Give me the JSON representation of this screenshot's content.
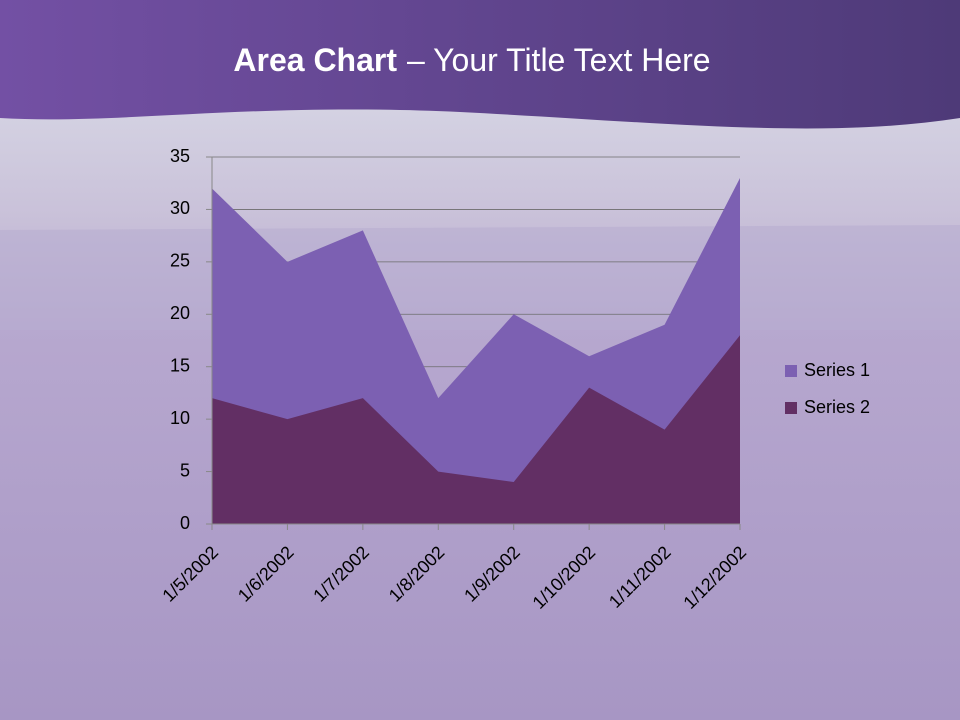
{
  "chart_data": {
    "type": "area",
    "title_bold": "Area Chart",
    "title_rest": "– Your Title Text Here",
    "categories": [
      "1/5/2002",
      "1/6/2002",
      "1/7/2002",
      "1/8/2002",
      "1/9/2002",
      "1/10/2002",
      "1/11/2002",
      "1/12/2002"
    ],
    "series": [
      {
        "name": "Series 1",
        "color": "#7c60b2",
        "values": [
          32,
          25,
          28,
          12,
          20,
          16,
          19,
          33
        ]
      },
      {
        "name": "Series 2",
        "color": "#622f64",
        "values": [
          12,
          10,
          12,
          5,
          4,
          13,
          9,
          18
        ]
      }
    ],
    "ylim": [
      0,
      35
    ],
    "yticks": [
      0,
      5,
      10,
      15,
      20,
      25,
      30,
      35
    ],
    "grid": true,
    "legend": "right"
  }
}
